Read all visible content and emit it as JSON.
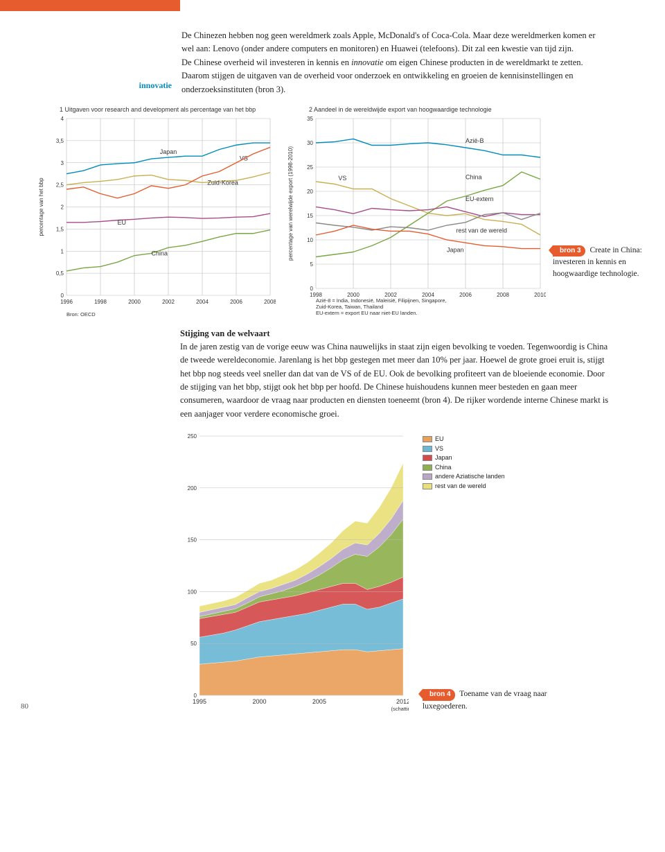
{
  "margin_label": "innovatie",
  "intro": {
    "p1": "De Chinezen hebben nog geen wereldmerk zoals Apple, McDonald's of Coca-Cola. Maar deze wereldmerken komen er wel aan: Lenovo (onder andere computers en monitoren) en Huawei (telefoons). Dit zal een kwestie van tijd zijn.",
    "p2a": "De Chinese overheid wil investeren in kennis en ",
    "p2em": "innovatie",
    "p2b": " om eigen Chinese producten in de wereldmarkt te zetten. Daarom stijgen de uitgaven van de overheid voor onderzoek en ontwikkeling en groeien de kennisinstellingen en onderzoeksinstituten (bron 3)."
  },
  "chart1": {
    "type": "line",
    "title": "1 Uitgaven voor research and development als percentage van het bbp",
    "ylabel": "percentage van het bbp",
    "source": "Bron: OECD",
    "xlim": [
      1996,
      2008
    ],
    "ylim": [
      0,
      4
    ],
    "xticks": [
      1996,
      1998,
      2000,
      2002,
      2004,
      2006,
      2008
    ],
    "yticks": [
      0,
      0.5,
      1,
      1.5,
      2,
      2.5,
      3,
      3.5,
      4
    ],
    "ytick_labels": [
      "0",
      "0,5",
      "1",
      "1,5",
      "2",
      "2,5",
      "3",
      "3,5",
      "4"
    ],
    "grid_color": "#bbbbbb",
    "series": {
      "Japan": {
        "color": "#008cba",
        "label_xy": [
          2001.5,
          3.2
        ],
        "pts": [
          [
            1996,
            2.75
          ],
          [
            1997,
            2.82
          ],
          [
            1998,
            2.95
          ],
          [
            1999,
            2.98
          ],
          [
            2000,
            3.0
          ],
          [
            2001,
            3.09
          ],
          [
            2002,
            3.12
          ],
          [
            2003,
            3.15
          ],
          [
            2004,
            3.15
          ],
          [
            2005,
            3.3
          ],
          [
            2006,
            3.4
          ],
          [
            2007,
            3.45
          ],
          [
            2008,
            3.45
          ]
        ]
      },
      "VS": {
        "color": "#c9b050",
        "label_xy": [
          2006.2,
          3.05
        ],
        "pts": [
          [
            1996,
            2.5
          ],
          [
            1997,
            2.55
          ],
          [
            1998,
            2.58
          ],
          [
            1999,
            2.62
          ],
          [
            2000,
            2.7
          ],
          [
            2001,
            2.72
          ],
          [
            2002,
            2.62
          ],
          [
            2003,
            2.6
          ],
          [
            2004,
            2.55
          ],
          [
            2005,
            2.58
          ],
          [
            2006,
            2.6
          ],
          [
            2007,
            2.68
          ],
          [
            2008,
            2.78
          ]
        ]
      },
      "Zuid-Korea": {
        "color": "#e65c2e",
        "label_xy": [
          2004.3,
          2.5
        ],
        "pts": [
          [
            1996,
            2.4
          ],
          [
            1997,
            2.45
          ],
          [
            1998,
            2.3
          ],
          [
            1999,
            2.2
          ],
          [
            2000,
            2.3
          ],
          [
            2001,
            2.48
          ],
          [
            2002,
            2.42
          ],
          [
            2003,
            2.5
          ],
          [
            2004,
            2.7
          ],
          [
            2005,
            2.8
          ],
          [
            2006,
            3.0
          ],
          [
            2007,
            3.2
          ],
          [
            2008,
            3.35
          ]
        ]
      },
      "EU": {
        "color": "#a84b8a",
        "label_xy": [
          1999,
          1.6
        ],
        "pts": [
          [
            1996,
            1.65
          ],
          [
            1997,
            1.65
          ],
          [
            1998,
            1.67
          ],
          [
            1999,
            1.7
          ],
          [
            2000,
            1.72
          ],
          [
            2001,
            1.75
          ],
          [
            2002,
            1.77
          ],
          [
            2003,
            1.76
          ],
          [
            2004,
            1.74
          ],
          [
            2005,
            1.75
          ],
          [
            2006,
            1.77
          ],
          [
            2007,
            1.78
          ],
          [
            2008,
            1.85
          ]
        ]
      },
      "China": {
        "color": "#7aa642",
        "label_xy": [
          2001,
          0.9
        ],
        "pts": [
          [
            1996,
            0.55
          ],
          [
            1997,
            0.62
          ],
          [
            1998,
            0.65
          ],
          [
            1999,
            0.75
          ],
          [
            2000,
            0.9
          ],
          [
            2001,
            0.95
          ],
          [
            2002,
            1.08
          ],
          [
            2003,
            1.13
          ],
          [
            2004,
            1.22
          ],
          [
            2005,
            1.32
          ],
          [
            2006,
            1.4
          ],
          [
            2007,
            1.4
          ],
          [
            2008,
            1.48
          ]
        ]
      }
    }
  },
  "chart2": {
    "type": "line",
    "title": "2 Aandeel in de wereldwijde export van hoogwaardige technologie",
    "ylabel": "percentage van werelwijde export (1998-2010)",
    "xlim": [
      1998,
      2010
    ],
    "ylim": [
      0,
      35
    ],
    "xticks": [
      1998,
      2000,
      2002,
      2004,
      2006,
      2008,
      2010
    ],
    "yticks": [
      0,
      5,
      10,
      15,
      20,
      25,
      30,
      35
    ],
    "grid_color": "#bbbbbb",
    "note1": "Azië-8 = India, Indonesië, Maleisië, Filipijnen, Singapore,",
    "note2": "Zuid-Korea, Taiwan, Thailand",
    "note3": "EU-extern = export EU naar niet-EU landen.",
    "series": {
      "Azië-B": {
        "color": "#008cba",
        "label_xy": [
          2006,
          30
        ],
        "pts": [
          [
            1998,
            30
          ],
          [
            1999,
            30.2
          ],
          [
            2000,
            30.8
          ],
          [
            2001,
            29.5
          ],
          [
            2002,
            29.5
          ],
          [
            2003,
            29.8
          ],
          [
            2004,
            30
          ],
          [
            2005,
            29.6
          ],
          [
            2006,
            29
          ],
          [
            2007,
            28.4
          ],
          [
            2008,
            27.5
          ],
          [
            2009,
            27.5
          ],
          [
            2010,
            27
          ]
        ]
      },
      "VS": {
        "color": "#c9b050",
        "label_xy": [
          1999.2,
          22.3
        ],
        "pts": [
          [
            1998,
            22
          ],
          [
            1999,
            21.5
          ],
          [
            2000,
            20.5
          ],
          [
            2001,
            20.5
          ],
          [
            2002,
            18.5
          ],
          [
            2003,
            17
          ],
          [
            2004,
            15.5
          ],
          [
            2005,
            15
          ],
          [
            2006,
            15.4
          ],
          [
            2007,
            14.2
          ],
          [
            2008,
            13.8
          ],
          [
            2009,
            13.2
          ],
          [
            2010,
            11
          ]
        ]
      },
      "China": {
        "color": "#7aa642",
        "label_xy": [
          2006,
          22.5
        ],
        "pts": [
          [
            1998,
            6.5
          ],
          [
            1999,
            7
          ],
          [
            2000,
            7.5
          ],
          [
            2001,
            8.8
          ],
          [
            2002,
            10.5
          ],
          [
            2003,
            13
          ],
          [
            2004,
            15.5
          ],
          [
            2005,
            18
          ],
          [
            2006,
            19
          ],
          [
            2007,
            20.2
          ],
          [
            2008,
            21.2
          ],
          [
            2009,
            24
          ],
          [
            2010,
            22.5
          ]
        ]
      },
      "EU-extern": {
        "color": "#a84b8a",
        "label_xy": [
          2006,
          18
        ],
        "pts": [
          [
            1998,
            16.8
          ],
          [
            1999,
            16.2
          ],
          [
            2000,
            15.4
          ],
          [
            2001,
            16.5
          ],
          [
            2002,
            16.2
          ],
          [
            2003,
            16
          ],
          [
            2004,
            16.2
          ],
          [
            2005,
            16.8
          ],
          [
            2006,
            15.8
          ],
          [
            2007,
            14.8
          ],
          [
            2008,
            15.6
          ],
          [
            2009,
            15.2
          ],
          [
            2010,
            15.2
          ]
        ]
      },
      "rest van de wereld": {
        "color": "#888888",
        "label_xy": [
          2005.5,
          11.5
        ],
        "pts": [
          [
            1998,
            13.5
          ],
          [
            1999,
            13
          ],
          [
            2000,
            12.6
          ],
          [
            2001,
            12
          ],
          [
            2002,
            12.7
          ],
          [
            2003,
            12.5
          ],
          [
            2004,
            12
          ],
          [
            2005,
            13
          ],
          [
            2006,
            13.6
          ],
          [
            2007,
            15.2
          ],
          [
            2008,
            15.6
          ],
          [
            2009,
            14.2
          ],
          [
            2010,
            15.5
          ]
        ]
      },
      "Japan": {
        "color": "#e65c2e",
        "label_xy": [
          2005,
          7.5
        ],
        "pts": [
          [
            1998,
            11
          ],
          [
            1999,
            11.8
          ],
          [
            2000,
            13
          ],
          [
            2001,
            12.2
          ],
          [
            2002,
            11.8
          ],
          [
            2003,
            11.8
          ],
          [
            2004,
            11.2
          ],
          [
            2005,
            10
          ],
          [
            2006,
            9.4
          ],
          [
            2007,
            8.8
          ],
          [
            2008,
            8.6
          ],
          [
            2009,
            8.2
          ],
          [
            2010,
            8.2
          ]
        ]
      }
    }
  },
  "caption3": {
    "tag": "bron 3",
    "text": "Create in China: investeren in kennis en hoogwaardige technologie."
  },
  "section2": {
    "heading": "Stijging van de welvaart",
    "text": "In de jaren zestig van de vorige eeuw was China nauwelijks in staat zijn eigen bevolking te voeden. Tegenwoordig is China de tweede wereldeconomie. Jarenlang is het bbp gestegen met meer dan 10% per jaar. Hoewel de grote groei eruit is, stijgt het bbp nog steeds veel sneller dan dat van de VS of de EU. Ook de bevolking profiteert van de bloeiende economie. Door de stijging van het bbp, stijgt ook het bbp per hoofd. De Chinese huishoudens kunnen meer besteden en gaan meer consumeren, waardoor de vraag naar producten en diensten toeneemt (bron 4). De rijker wordende interne Chinese markt is een aanjager voor verdere economische groei."
  },
  "chart3": {
    "type": "stacked-area",
    "xlim": [
      1995,
      2012
    ],
    "ylim": [
      0,
      250
    ],
    "xticks": [
      1995,
      2000,
      2005,
      2012
    ],
    "xtick_labels": [
      "1995",
      "2000",
      "2005",
      "2012"
    ],
    "xnote": "(schatting)",
    "yticks": [
      0,
      50,
      100,
      150,
      200,
      250
    ],
    "grid_color": "#bbbbbb",
    "legend": [
      {
        "label": "EU",
        "color": "#e8a05a"
      },
      {
        "label": "VS",
        "color": "#6bb7d4"
      },
      {
        "label": "Japan",
        "color": "#d44a4a"
      },
      {
        "label": "China",
        "color": "#8fb04e"
      },
      {
        "label": "andere Aziatische landen",
        "color": "#b9a7c7"
      },
      {
        "label": "rest van de wereld",
        "color": "#e9e07a"
      }
    ],
    "series": [
      {
        "key": "EU",
        "color": "#e8a05a",
        "vals": [
          30,
          31,
          32,
          33,
          35,
          37,
          38,
          39,
          40,
          41,
          42,
          43,
          44,
          44,
          42,
          43,
          44,
          45
        ]
      },
      {
        "key": "VS",
        "color": "#6bb7d4",
        "vals": [
          26,
          27,
          28,
          30,
          32,
          34,
          35,
          36,
          37,
          38,
          40,
          42,
          44,
          44,
          41,
          42,
          45,
          48
        ]
      },
      {
        "key": "Japan",
        "color": "#d44a4a",
        "vals": [
          18,
          18,
          18,
          17,
          18,
          19,
          19,
          19,
          19,
          20,
          20,
          20,
          20,
          20,
          19,
          20,
          20,
          21
        ]
      },
      {
        "key": "China",
        "color": "#8fb04e",
        "vals": [
          2,
          2.5,
          3,
          3.5,
          4,
          5,
          6,
          7,
          9,
          11,
          14,
          18,
          23,
          28,
          32,
          38,
          46,
          56
        ]
      },
      {
        "key": "andAz",
        "color": "#b9a7c7",
        "vals": [
          4,
          4,
          4,
          4,
          5,
          5,
          5,
          6,
          6,
          7,
          8,
          9,
          10,
          11,
          11,
          13,
          15,
          18
        ]
      },
      {
        "key": "rest",
        "color": "#e9e07a",
        "vals": [
          6,
          6,
          6,
          7,
          7,
          8,
          8,
          9,
          10,
          11,
          13,
          15,
          18,
          21,
          21,
          25,
          30,
          36
        ]
      }
    ]
  },
  "caption4": {
    "tag": "bron 4",
    "text": "Toename van de vraag naar luxegoederen."
  },
  "pagenum": "80"
}
